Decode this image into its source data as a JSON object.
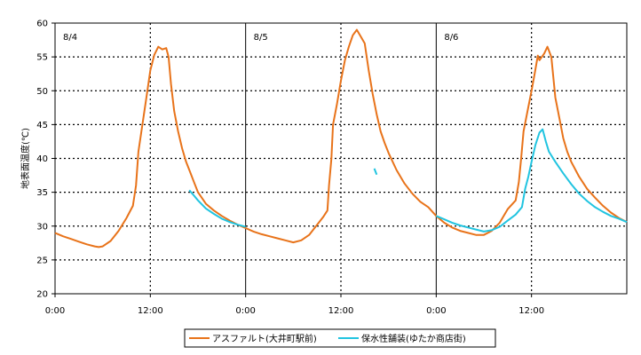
{
  "chart_data": {
    "type": "line",
    "title": "",
    "xlabel": "",
    "ylabel": "地表面温度(℃)",
    "ylim": [
      20,
      60
    ],
    "yticks": [
      20,
      25,
      30,
      35,
      40,
      45,
      50,
      55,
      60
    ],
    "xlim": [
      0,
      72
    ],
    "xticks": [
      0,
      12,
      24,
      36,
      48,
      60
    ],
    "xtick_labels": [
      "0:00",
      "12:00",
      "0:00",
      "12:00",
      "0:00",
      "12:00"
    ],
    "day_labels": [
      {
        "text": "8/4",
        "x": 0
      },
      {
        "text": "8/5",
        "x": 24
      },
      {
        "text": "8/6",
        "x": 48
      }
    ],
    "grid": true,
    "legend": "bottom",
    "series": [
      {
        "name": "アスファルト(大井町駅前)",
        "color": "#e8731a",
        "points": [
          [
            0,
            29
          ],
          [
            1,
            28.5
          ],
          [
            2,
            28.1
          ],
          [
            3,
            27.7
          ],
          [
            4,
            27.3
          ],
          [
            5,
            27
          ],
          [
            5.5,
            26.9
          ],
          [
            6,
            27
          ],
          [
            7,
            27.8
          ],
          [
            8,
            29.3
          ],
          [
            9,
            31.2
          ],
          [
            9.8,
            33
          ],
          [
            10.2,
            36
          ],
          [
            10.5,
            41
          ],
          [
            11,
            45
          ],
          [
            11.5,
            49
          ],
          [
            12,
            53
          ],
          [
            12.5,
            55.3
          ],
          [
            13,
            56.5
          ],
          [
            13.5,
            56.1
          ],
          [
            14,
            56.3
          ],
          [
            14.3,
            55
          ],
          [
            14.6,
            51
          ],
          [
            15,
            47
          ],
          [
            15.5,
            44
          ],
          [
            16,
            41.5
          ],
          [
            16.5,
            39.5
          ],
          [
            17,
            38
          ],
          [
            17.5,
            36.5
          ],
          [
            18,
            35
          ],
          [
            19,
            33.3
          ],
          [
            20,
            32.3
          ],
          [
            21,
            31.5
          ],
          [
            22,
            30.8
          ],
          [
            23,
            30.2
          ],
          [
            24,
            29.7
          ],
          [
            25,
            29.2
          ],
          [
            26,
            28.8
          ],
          [
            27,
            28.5
          ],
          [
            28,
            28.2
          ],
          [
            29,
            27.9
          ],
          [
            30,
            27.6
          ],
          [
            31,
            27.9
          ],
          [
            32,
            28.7
          ],
          [
            33,
            30.2
          ],
          [
            33.8,
            31.4
          ],
          [
            34.3,
            32.3
          ],
          [
            34.5,
            36
          ],
          [
            34.8,
            40
          ],
          [
            35,
            45
          ],
          [
            35.5,
            48
          ],
          [
            36,
            51.5
          ],
          [
            36.5,
            54.5
          ],
          [
            37,
            56.5
          ],
          [
            37.5,
            58.2
          ],
          [
            38,
            59
          ],
          [
            38.5,
            58
          ],
          [
            39,
            57
          ],
          [
            39.5,
            53
          ],
          [
            40,
            49.5
          ],
          [
            40.5,
            46.5
          ],
          [
            41,
            44
          ],
          [
            41.5,
            42.3
          ],
          [
            42,
            40.8
          ],
          [
            43,
            38.3
          ],
          [
            44,
            36.3
          ],
          [
            45,
            34.8
          ],
          [
            46,
            33.6
          ],
          [
            47,
            32.8
          ],
          [
            48,
            31.5
          ],
          [
            49,
            30.5
          ],
          [
            50,
            29.8
          ],
          [
            51,
            29.3
          ],
          [
            52,
            29
          ],
          [
            53,
            28.7
          ],
          [
            54,
            28.7
          ],
          [
            55,
            29.3
          ],
          [
            56,
            30.5
          ],
          [
            57,
            32.5
          ],
          [
            58,
            33.8
          ],
          [
            58.4,
            36.5
          ],
          [
            58.7,
            40
          ],
          [
            59,
            44
          ],
          [
            59.5,
            47
          ],
          [
            60,
            50
          ],
          [
            60.4,
            52.5
          ],
          [
            60.8,
            55.2
          ],
          [
            61,
            54.5
          ],
          [
            61.3,
            55
          ],
          [
            61.6,
            55.5
          ],
          [
            62,
            56.5
          ],
          [
            62.5,
            55
          ],
          [
            63,
            49
          ],
          [
            63.5,
            46
          ],
          [
            64,
            43
          ],
          [
            64.5,
            41
          ],
          [
            65,
            39.5
          ],
          [
            66,
            37.3
          ],
          [
            67,
            35.5
          ],
          [
            68,
            34.2
          ],
          [
            69,
            33
          ],
          [
            70,
            32
          ],
          [
            71,
            31.2
          ],
          [
            72,
            30.6
          ]
        ]
      },
      {
        "name": "保水性舗装(ゆたか商店街)",
        "color": "#21c4e0",
        "segments": [
          [
            [
              16.9,
              35.3
            ],
            [
              17.5,
              34.5
            ],
            [
              18,
              33.8
            ],
            [
              19,
              32.6
            ],
            [
              20,
              31.8
            ],
            [
              21,
              31.1
            ],
            [
              22,
              30.6
            ],
            [
              23,
              30.2
            ],
            [
              24,
              29.9
            ]
          ],
          [
            [
              40.2,
              38.5
            ],
            [
              40.5,
              37.6
            ]
          ],
          [
            [
              48,
              31.5
            ],
            [
              49,
              31
            ],
            [
              50,
              30.5
            ],
            [
              51,
              30.1
            ],
            [
              52,
              29.8
            ],
            [
              53,
              29.5
            ],
            [
              54,
              29.2
            ],
            [
              55,
              29.4
            ],
            [
              56,
              29.9
            ],
            [
              57,
              30.8
            ],
            [
              58,
              31.7
            ],
            [
              58.8,
              32.8
            ],
            [
              59.2,
              35.5
            ],
            [
              59.6,
              37.3
            ],
            [
              60,
              39.5
            ],
            [
              60.5,
              42
            ],
            [
              61,
              43.8
            ],
            [
              61.4,
              44.3
            ],
            [
              61.8,
              42.5
            ],
            [
              62.2,
              41
            ],
            [
              63,
              39.5
            ],
            [
              64,
              37.8
            ],
            [
              65,
              36.2
            ],
            [
              66,
              34.8
            ],
            [
              67,
              33.7
            ],
            [
              68,
              32.8
            ],
            [
              69,
              32.1
            ],
            [
              70,
              31.5
            ],
            [
              71,
              31.1
            ],
            [
              72,
              30.6
            ]
          ]
        ]
      }
    ]
  }
}
